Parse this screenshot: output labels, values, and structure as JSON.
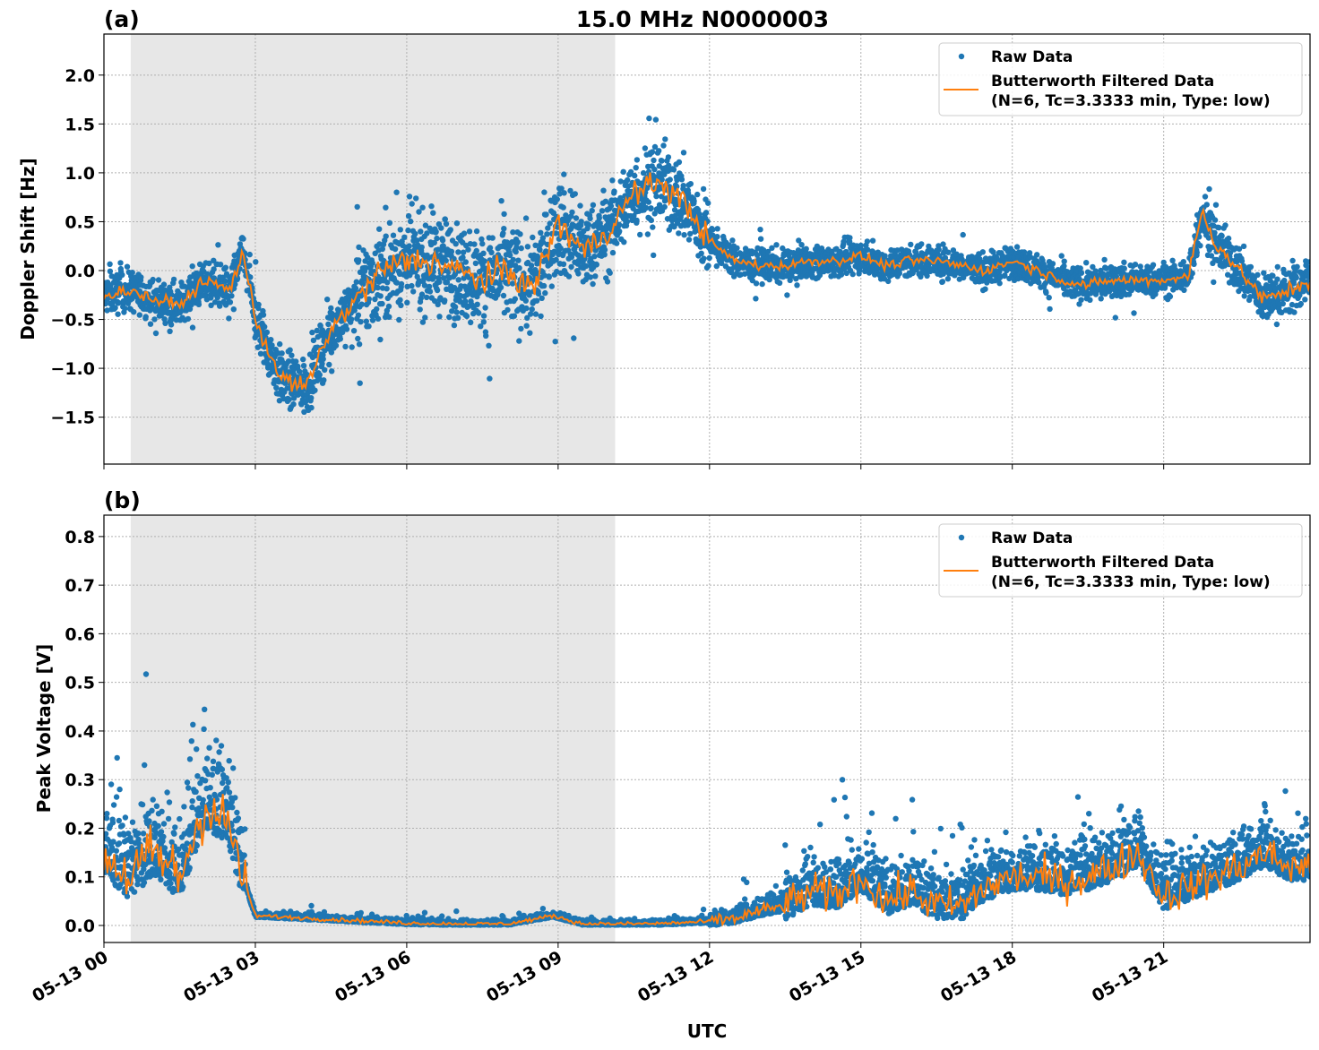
{
  "chart_data": [
    {
      "type": "scatter+line",
      "panel_label": "(a)",
      "title": "15.0 MHz N0000003",
      "xlabel": "UTC",
      "ylabel": "Doppler Shift [Hz]",
      "xlim_hours": [
        0,
        23.9
      ],
      "ylim": [
        -1.98,
        2.42
      ],
      "yticks": [
        -1.5,
        -1.0,
        -0.5,
        0.0,
        0.5,
        1.0,
        1.5,
        2.0
      ],
      "ytick_labels": [
        "−1.5",
        "−1.0",
        "−0.5",
        "0.0",
        "0.5",
        "1.0",
        "1.5",
        "2.0"
      ],
      "shaded_region_hours": [
        0.53,
        10.13
      ],
      "grid": true,
      "legend_placement": "top-right",
      "legend": [
        "Raw Data",
        "Butterworth Filtered Data",
        "(N=6, Tc=3.3333 min, Type: low)"
      ],
      "filtered_series": {
        "name": "Butterworth Filtered Data",
        "color": "#ff7f0e",
        "x_hours": [
          0,
          0.5,
          1,
          1.5,
          2,
          2.5,
          2.75,
          3,
          3.5,
          4,
          4.5,
          5,
          5.5,
          6,
          6.5,
          7,
          7.5,
          8,
          8.5,
          9,
          9.5,
          10,
          10.5,
          11,
          11.5,
          12,
          12.5,
          13,
          13.5,
          14,
          14.5,
          15,
          15.5,
          16,
          16.5,
          17,
          17.5,
          18,
          18.5,
          19,
          19.5,
          20,
          20.5,
          21,
          21.5,
          21.75,
          22,
          22.5,
          23,
          23.5,
          23.9
        ],
        "y": [
          -0.25,
          -0.2,
          -0.3,
          -0.35,
          -0.1,
          -0.2,
          0.2,
          -0.5,
          -1.1,
          -1.2,
          -0.6,
          -0.3,
          0.0,
          0.1,
          0.1,
          0.0,
          -0.1,
          0.0,
          -0.2,
          0.5,
          0.2,
          0.4,
          0.8,
          0.9,
          0.7,
          0.3,
          0.1,
          0.05,
          0.05,
          0.1,
          0.1,
          0.15,
          0.05,
          0.1,
          0.1,
          0.05,
          0.0,
          0.1,
          0.0,
          -0.1,
          -0.15,
          -0.1,
          -0.1,
          -0.1,
          -0.05,
          0.6,
          0.3,
          0.0,
          -0.3,
          -0.2,
          -0.1
        ]
      },
      "raw_series": {
        "name": "Raw Data",
        "color": "#1f77b4",
        "spread_segments_hours": [
          [
            0,
            3,
            0.25
          ],
          [
            3,
            5,
            0.35
          ],
          [
            5,
            9.5,
            0.6
          ],
          [
            9.5,
            12,
            0.5
          ],
          [
            12,
            21.5,
            0.2
          ],
          [
            21.5,
            23.9,
            0.3
          ]
        ]
      }
    },
    {
      "type": "scatter+line",
      "panel_label": "(b)",
      "xlabel": "UTC",
      "ylabel": "Peak Voltage [V]",
      "xlim_hours": [
        0,
        23.9
      ],
      "ylim": [
        -0.035,
        0.844
      ],
      "yticks": [
        0.0,
        0.1,
        0.2,
        0.3,
        0.4,
        0.5,
        0.6,
        0.7,
        0.8
      ],
      "ytick_labels": [
        "0.0",
        "0.1",
        "0.2",
        "0.3",
        "0.4",
        "0.5",
        "0.6",
        "0.7",
        "0.8"
      ],
      "shaded_region_hours": [
        0.53,
        10.13
      ],
      "grid": true,
      "legend_placement": "top-right",
      "legend": [
        "Raw Data",
        "Butterworth Filtered Data",
        "(N=6, Tc=3.3333 min, Type: low)"
      ],
      "filtered_series": {
        "name": "Butterworth Filtered Data",
        "color": "#ff7f0e",
        "x_hours": [
          0,
          0.5,
          1,
          1.5,
          2,
          2.5,
          2.75,
          3,
          4,
          5,
          6,
          7,
          8,
          8.9,
          9.5,
          10,
          11,
          12,
          12.5,
          13,
          13.5,
          14,
          14.5,
          15,
          15.5,
          16,
          16.5,
          17,
          17.5,
          18,
          18.5,
          19,
          19.5,
          20,
          20.5,
          21,
          21.5,
          22,
          22.5,
          23,
          23.5,
          23.9
        ],
        "y": [
          0.15,
          0.1,
          0.15,
          0.1,
          0.25,
          0.2,
          0.1,
          0.02,
          0.015,
          0.01,
          0.005,
          0.003,
          0.003,
          0.02,
          0.003,
          0.003,
          0.004,
          0.008,
          0.015,
          0.03,
          0.04,
          0.07,
          0.06,
          0.1,
          0.05,
          0.07,
          0.04,
          0.04,
          0.08,
          0.1,
          0.1,
          0.09,
          0.1,
          0.12,
          0.15,
          0.06,
          0.08,
          0.1,
          0.12,
          0.15,
          0.12,
          0.12
        ]
      },
      "raw_series": {
        "name": "Raw Data",
        "color": "#1f77b4",
        "spread_segments_hours": [
          [
            0,
            2.8,
            0.18
          ],
          [
            2.8,
            12,
            0.012
          ],
          [
            12,
            13.5,
            0.04
          ],
          [
            13.5,
            23.9,
            0.11
          ]
        ]
      }
    }
  ],
  "xticks": {
    "hours": [
      0,
      3,
      6,
      9,
      12,
      15,
      18,
      21
    ],
    "labels": [
      "05-13 00",
      "05-13 03",
      "05-13 06",
      "05-13 09",
      "05-13 12",
      "05-13 15",
      "05-13 18",
      "05-13 21"
    ]
  },
  "colors": {
    "raw": "#1f77b4",
    "filtered": "#ff7f0e",
    "shade": "#e7e7e7"
  }
}
